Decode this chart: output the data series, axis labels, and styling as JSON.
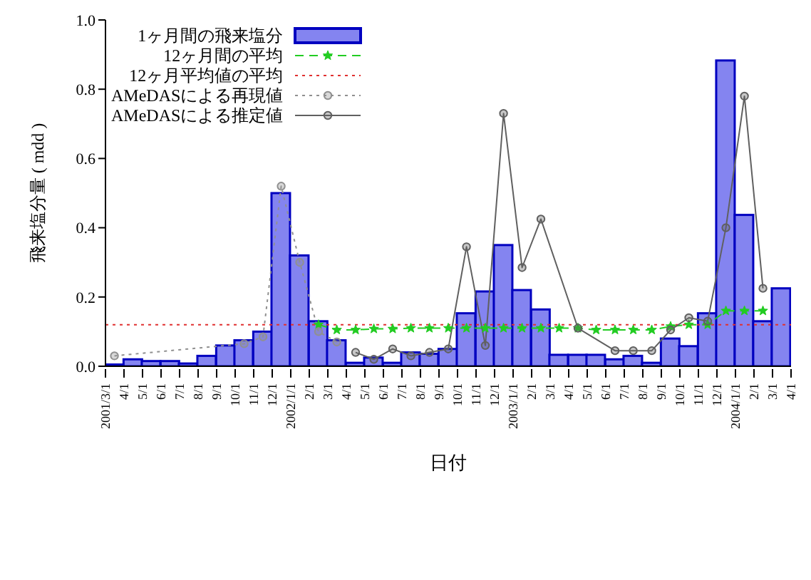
{
  "chart_data": {
    "type": "bar",
    "xlabel": "日付",
    "ylabel": "飛来塩分量 ( mdd )",
    "xlim": [
      "2001-03-01",
      "2004-04-01"
    ],
    "xticks": [
      {
        "value": "2001-03-01",
        "label": "2001/3/1"
      },
      {
        "value": "2001-04-01",
        "label": "4/1"
      },
      {
        "value": "2001-05-01",
        "label": "5/1"
      },
      {
        "value": "2001-06-01",
        "label": "6/1"
      },
      {
        "value": "2001-07-01",
        "label": "7/1"
      },
      {
        "value": "2001-08-01",
        "label": "8/1"
      },
      {
        "value": "2001-09-01",
        "label": "9/1"
      },
      {
        "value": "2001-10-01",
        "label": "10/1"
      },
      {
        "value": "2001-11-01",
        "label": "11/1"
      },
      {
        "value": "2001-12-01",
        "label": "12/1"
      },
      {
        "value": "2002-01-01",
        "label": "2002/1/1"
      },
      {
        "value": "2002-02-01",
        "label": "2/1"
      },
      {
        "value": "2002-03-01",
        "label": "3/1"
      },
      {
        "value": "2002-04-01",
        "label": "4/1"
      },
      {
        "value": "2002-05-01",
        "label": "5/1"
      },
      {
        "value": "2002-06-01",
        "label": "6/1"
      },
      {
        "value": "2002-07-01",
        "label": "7/1"
      },
      {
        "value": "2002-08-01",
        "label": "8/1"
      },
      {
        "value": "2002-09-01",
        "label": "9/1"
      },
      {
        "value": "2002-10-01",
        "label": "10/1"
      },
      {
        "value": "2002-11-01",
        "label": "11/1"
      },
      {
        "value": "2002-12-01",
        "label": "12/1"
      },
      {
        "value": "2003-01-01",
        "label": "2003/1/1"
      },
      {
        "value": "2003-02-01",
        "label": "2/1"
      },
      {
        "value": "2003-03-01",
        "label": "3/1"
      },
      {
        "value": "2003-04-01",
        "label": "4/1"
      },
      {
        "value": "2003-05-01",
        "label": "5/1"
      },
      {
        "value": "2003-06-01",
        "label": "6/1"
      },
      {
        "value": "2003-07-01",
        "label": "7/1"
      },
      {
        "value": "2003-08-01",
        "label": "8/1"
      },
      {
        "value": "2003-09-01",
        "label": "9/1"
      },
      {
        "value": "2003-10-01",
        "label": "10/1"
      },
      {
        "value": "2003-11-01",
        "label": "11/1"
      },
      {
        "value": "2003-12-01",
        "label": "12/1"
      },
      {
        "value": "2004-01-01",
        "label": "2004/1/1"
      },
      {
        "value": "2004-02-01",
        "label": "2/1"
      },
      {
        "value": "2004-03-01",
        "label": "3/1"
      },
      {
        "value": "2004-04-01",
        "label": "4/1"
      }
    ],
    "ylim": [
      0,
      1
    ],
    "yticks": [
      {
        "value": 0,
        "label": "0.0"
      },
      {
        "value": 0.2,
        "label": "0.2"
      },
      {
        "value": 0.4,
        "label": "0.4"
      },
      {
        "value": 0.6,
        "label": "0.6"
      },
      {
        "value": 0.8,
        "label": "0.8"
      },
      {
        "value": 1,
        "label": "1.0"
      }
    ],
    "legend": "top left",
    "series": [
      {
        "name": "1ヶ月間の飛来塩分",
        "color": "#8484f0",
        "x": [
          "2001-03-16",
          "2001-04-16",
          "2001-05-16",
          "2001-06-16",
          "2001-07-16",
          "2001-08-16",
          "2001-09-16",
          "2001-10-16",
          "2001-11-16",
          "2001-12-16",
          "2002-01-16",
          "2002-02-15",
          "2002-03-16",
          "2002-04-16",
          "2002-05-16",
          "2002-06-16",
          "2002-07-16",
          "2002-08-16",
          "2002-09-16",
          "2002-10-16",
          "2002-11-16",
          "2002-12-16",
          "2003-01-16",
          "2003-02-15",
          "2003-03-16",
          "2003-04-16",
          "2003-05-16",
          "2003-06-16",
          "2003-07-16",
          "2003-08-16",
          "2003-09-16",
          "2003-10-16",
          "2003-11-16",
          "2003-12-16",
          "2004-01-16",
          "2004-02-15",
          "2004-03-16"
        ],
        "values": [
          0.005,
          0.02,
          0.015,
          0.015,
          0.008,
          0.03,
          0.06,
          0.075,
          0.1,
          0.5,
          0.32,
          0.13,
          0.075,
          0.01,
          0.025,
          0.01,
          0.04,
          0.036,
          0.05,
          0.153,
          0.216,
          0.35,
          0.22,
          0.164,
          0.033,
          0.033,
          0.033,
          0.02,
          0.03,
          0.01,
          0.08,
          0.058,
          0.153,
          0.883,
          0.437,
          0.13,
          0.225
        ]
      },
      {
        "name": "12ヶ月間の平均",
        "type": "line",
        "color": "#22cc22",
        "line_style": "dashed",
        "marker": "star",
        "x": [
          "2002-02-15",
          "2002-03-16",
          "2002-04-16",
          "2002-05-16",
          "2002-06-16",
          "2002-07-16",
          "2002-08-16",
          "2002-09-16",
          "2002-10-16",
          "2002-11-16",
          "2002-12-16",
          "2003-01-16",
          "2003-02-15",
          "2003-03-16",
          "2003-04-16",
          "2003-05-16",
          "2003-06-16",
          "2003-07-16",
          "2003-08-16",
          "2003-09-16",
          "2003-10-16",
          "2003-11-16",
          "2003-12-16",
          "2004-01-16",
          "2004-02-15"
        ],
        "values": [
          0.12,
          0.105,
          0.105,
          0.108,
          0.108,
          0.11,
          0.11,
          0.11,
          0.11,
          0.11,
          0.11,
          0.11,
          0.11,
          0.11,
          0.11,
          0.105,
          0.105,
          0.105,
          0.105,
          0.115,
          0.12,
          0.12,
          0.16,
          0.16,
          0.16
        ]
      },
      {
        "name": "12ヶ月平均値の平均",
        "type": "line",
        "color": "#e03030",
        "line_style": "dotted",
        "marker": "none",
        "x": [
          "2001-03-01",
          "2004-04-01"
        ],
        "values": [
          0.12,
          0.12
        ]
      },
      {
        "name": "AMeDASによる再現値",
        "type": "line",
        "color": "#909090",
        "line_style": "dotted",
        "marker": "circle",
        "x": [
          "2001-03-16",
          "2001-10-16",
          "2001-11-16",
          "2001-12-16",
          "2002-01-16",
          "2002-02-15",
          "2002-03-16"
        ],
        "values": [
          0.03,
          0.065,
          0.085,
          0.52,
          0.3,
          0.1,
          0.07
        ]
      },
      {
        "name": "AMeDASによる推定値",
        "type": "line",
        "color": "#606060",
        "line_style": "solid",
        "marker": "circle",
        "x": [
          "2002-04-16",
          "2002-05-16",
          "2002-06-16",
          "2002-07-16",
          "2002-08-16",
          "2002-09-16",
          "2002-10-16",
          "2002-11-16",
          "2002-12-16",
          "2003-01-16",
          "2003-02-15",
          "2003-04-16",
          "2003-06-16",
          "2003-07-16",
          "2003-08-16",
          "2003-09-16",
          "2003-10-16",
          "2003-11-16",
          "2003-12-16",
          "2004-01-16",
          "2004-02-15"
        ],
        "values": [
          0.04,
          0.02,
          0.05,
          0.03,
          0.04,
          0.05,
          0.345,
          0.06,
          0.73,
          0.285,
          0.425,
          0.11,
          0.045,
          0.045,
          0.045,
          0.105,
          0.14,
          0.13,
          0.4,
          0.78,
          0.225
        ]
      }
    ]
  }
}
